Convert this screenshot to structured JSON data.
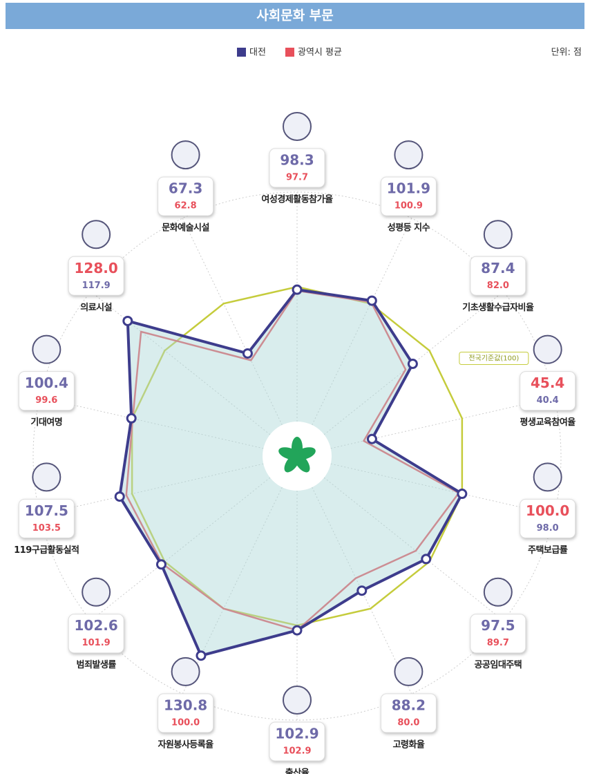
{
  "chart_data": {
    "type": "radar",
    "title": "사회문화 부문",
    "unit": "단위: 점",
    "categories": [
      "여성경제활동참가율",
      "성평등 지수",
      "기초생활수급자비율",
      "평생교육참여율",
      "주택보급률",
      "공공임대주택",
      "고령화율",
      "출산율",
      "자원봉사등록율",
      "범죄발생률",
      "119구급활동실적",
      "기대여명",
      "의료시설",
      "문화예술시설"
    ],
    "series": [
      {
        "name": "대전",
        "color": "#3d3c8c",
        "values": [
          98.3,
          101.9,
          87.4,
          45.4,
          100.0,
          97.5,
          88.2,
          102.9,
          130.8,
          102.6,
          107.5,
          100.4,
          128.0,
          67.3
        ],
        "value_labels": [
          "98.3",
          "101.9",
          "87.4",
          "45.4",
          "100.0",
          "97.5",
          "88.2",
          "102.9",
          "130.8",
          "102.6",
          "107.5",
          "100.4",
          "128.0",
          "67.3"
        ]
      },
      {
        "name": "광역시 평균",
        "color": "#e8505b",
        "values": [
          97.7,
          100.9,
          82.0,
          40.4,
          98.0,
          89.7,
          80.0,
          102.9,
          100.0,
          101.9,
          103.5,
          99.6,
          117.9,
          62.8
        ],
        "value_labels": [
          "97.7",
          "100.9",
          "82.0",
          "40.4",
          "98.0",
          "89.7",
          "80.0",
          "102.9",
          "100.0",
          "101.9",
          "103.5",
          "99.6",
          "117.9",
          "62.8"
        ]
      }
    ],
    "label_colors": [
      [
        "#6e6aa8",
        "#e8505b"
      ],
      [
        "#6e6aa8",
        "#e8505b"
      ],
      [
        "#6e6aa8",
        "#e8505b"
      ],
      [
        "#e8505b",
        "#6e6aa8"
      ],
      [
        "#e8505b",
        "#6e6aa8"
      ],
      [
        "#6e6aa8",
        "#e8505b"
      ],
      [
        "#6e6aa8",
        "#e8505b"
      ],
      [
        "#6e6aa8",
        "#e8505b"
      ],
      [
        "#6e6aa8",
        "#e8505b"
      ],
      [
        "#6e6aa8",
        "#e8505b"
      ],
      [
        "#6e6aa8",
        "#e8505b"
      ],
      [
        "#6e6aa8",
        "#e8505b"
      ],
      [
        "#e8505b",
        "#6e6aa8"
      ],
      [
        "#6e6aa8",
        "#e8505b"
      ]
    ],
    "reference": {
      "label": "전국기준값(100)",
      "value": 100,
      "color": "#c5cc3c"
    },
    "rlim": [
      0,
      140
    ]
  }
}
